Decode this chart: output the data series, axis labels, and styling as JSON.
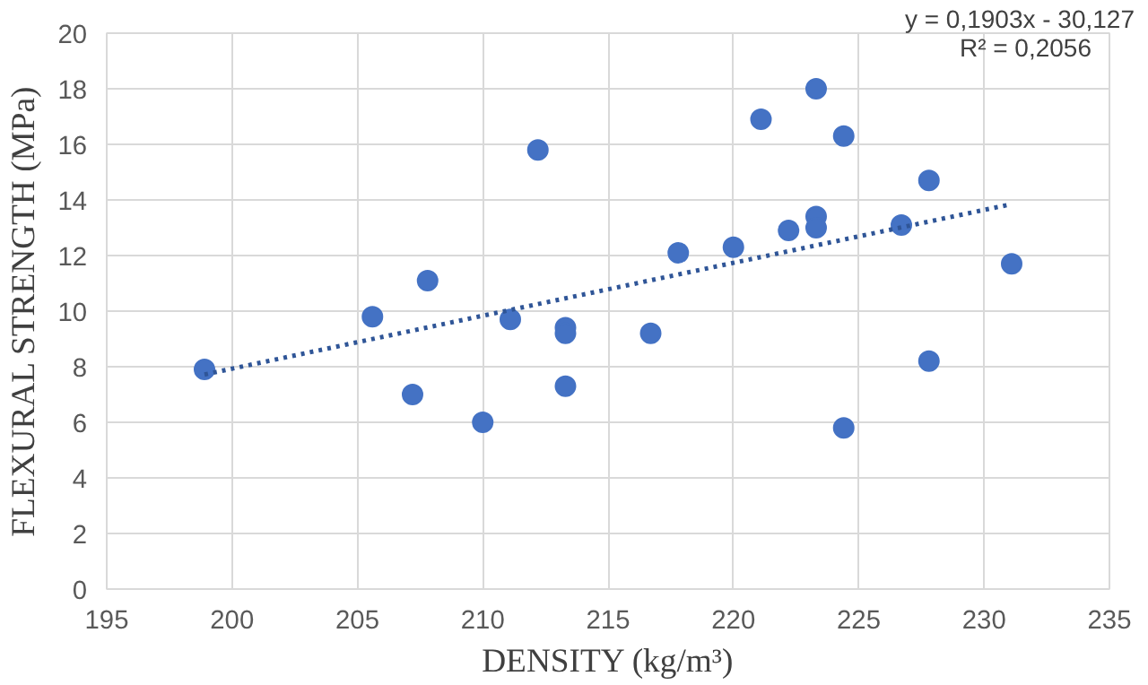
{
  "chart_data": {
    "type": "scatter",
    "xlabel": "DENSITY (kg/m³)",
    "ylabel": "FLEXURAL STRENGTH (MPa)",
    "annotations": [
      "y = 0,1903x - 30,127",
      "R² = 0,2056"
    ],
    "series": [
      {
        "color": "#4472c4",
        "marker": "circle",
        "x": [
          198.9,
          205.6,
          207.8,
          212.2,
          211.1,
          213.3,
          213.3,
          213.3,
          207.2,
          210.0,
          216.7,
          217.8,
          220.0,
          221.1,
          222.2,
          223.3,
          223.3,
          223.3,
          224.4,
          224.4,
          226.7,
          227.8,
          227.8,
          231.1
        ],
        "values": [
          7.9,
          9.8,
          11.1,
          15.8,
          9.7,
          9.4,
          9.2,
          7.3,
          7.0,
          6.0,
          9.2,
          12.1,
          12.3,
          16.9,
          12.9,
          18.0,
          13.4,
          13.0,
          16.3,
          5.8,
          13.1,
          14.7,
          8.2,
          11.7
        ]
      },
      {
        "type": "line",
        "color": "#2f5597",
        "line_style": "dotted",
        "x": [
          198.9,
          231.1
        ],
        "values": [
          7.72,
          13.85
        ]
      }
    ],
    "xlim": [
      195,
      235
    ],
    "xticks": [
      195,
      200,
      205,
      210,
      215,
      220,
      225,
      230,
      235
    ],
    "ylim": [
      0,
      20
    ],
    "yticks": [
      0,
      2,
      4,
      6,
      8,
      10,
      12,
      14,
      16,
      18,
      20
    ],
    "grid": true
  }
}
